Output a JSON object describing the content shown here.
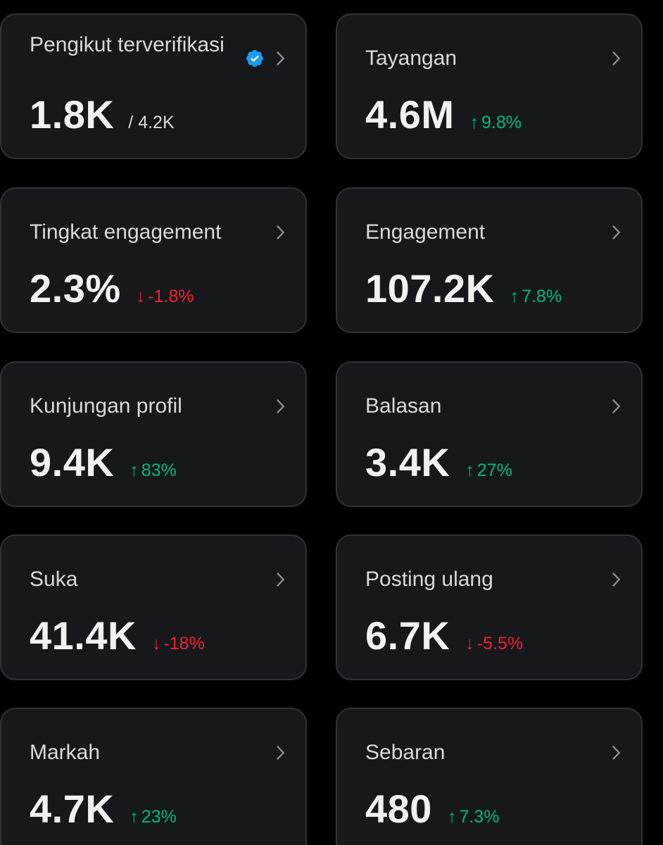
{
  "colors": {
    "background": "#000000",
    "card": "#16181c",
    "card_border": "#2f3336",
    "positive": "#00ba7c",
    "negative": "#f4212e",
    "verified": "#1d9bf0"
  },
  "cards": [
    {
      "label": "Pengikut terverifikasi",
      "value": "1.8K",
      "secondary": "/ 4.2K",
      "verified_icon": "verified-badge-icon"
    },
    {
      "label": "Tayangan",
      "value": "4.6M",
      "arrow": "↑",
      "change": "9.8%",
      "direction": "up"
    },
    {
      "label": "Tingkat engagement",
      "value": "2.3%",
      "arrow": "↓",
      "change": "-1.8%",
      "direction": "down"
    },
    {
      "label": "Engagement",
      "value": "107.2K",
      "arrow": "↑",
      "change": "7.8%",
      "direction": "up"
    },
    {
      "label": "Kunjungan profil",
      "value": "9.4K",
      "arrow": "↑",
      "change": "83%",
      "direction": "up"
    },
    {
      "label": "Balasan",
      "value": "3.4K",
      "arrow": "↑",
      "change": "27%",
      "direction": "up"
    },
    {
      "label": "Suka",
      "value": "41.4K",
      "arrow": "↓",
      "change": "-18%",
      "direction": "down"
    },
    {
      "label": "Posting ulang",
      "value": "6.7K",
      "arrow": "↓",
      "change": "-5.5%",
      "direction": "down"
    },
    {
      "label": "Markah",
      "value": "4.7K",
      "arrow": "↑",
      "change": "23%",
      "direction": "up"
    },
    {
      "label": "Sebaran",
      "value": "480",
      "arrow": "↑",
      "change": "7.3%",
      "direction": "up"
    }
  ]
}
